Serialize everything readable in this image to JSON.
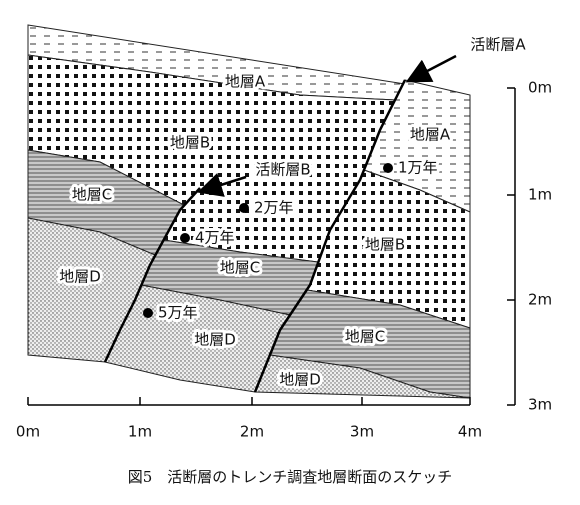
{
  "fault_labels": [
    "活断層A",
    "活断層B"
  ],
  "layer_labels": [
    "地層A",
    "地層A",
    "地層B",
    "地層C",
    "地層B",
    "地層C",
    "地層D",
    "地層D",
    "地層C",
    "地層D"
  ],
  "age_labels": [
    "1万年",
    "2万年",
    "4万年",
    "5万年"
  ],
  "x_axis_labels": [
    "0m",
    "1m",
    "2m",
    "3m",
    "4m"
  ],
  "depth_labels": [
    "0m",
    "1m",
    "2m",
    "3m"
  ],
  "caption": "図5　活断層のトレンチ調査地層断面のスケッチ"
}
